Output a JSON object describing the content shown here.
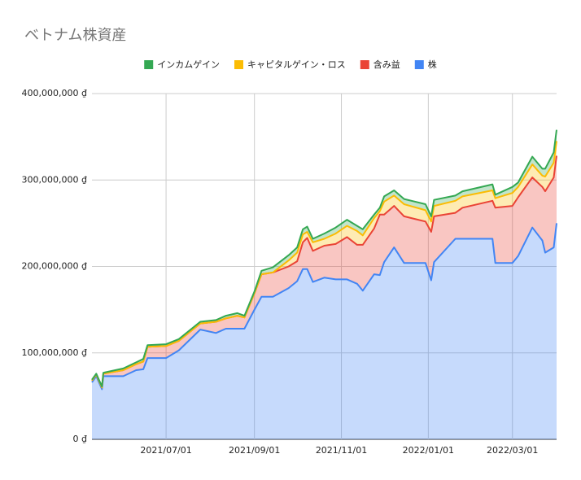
{
  "chart_data": {
    "type": "stacked_area",
    "title": "ベトナム株資産",
    "x": [
      "2021/05/10",
      "2021/05/13",
      "2021/05/17",
      "2021/05/18",
      "2021/06/01",
      "2021/06/10",
      "2021/06/15",
      "2021/06/18",
      "2021/07/01",
      "2021/07/10",
      "2021/07/25",
      "2021/08/05",
      "2021/08/12",
      "2021/08/20",
      "2021/08/25",
      "2021/09/01",
      "2021/09/06",
      "2021/09/14",
      "2021/09/25",
      "2021/10/01",
      "2021/10/05",
      "2021/10/08",
      "2021/10/12",
      "2021/10/20",
      "2021/10/28",
      "2021/11/05",
      "2021/11/12",
      "2021/11/16",
      "2021/11/24",
      "2021/11/28",
      "2021/12/01",
      "2021/12/08",
      "2021/12/15",
      "2021/12/30",
      "2022/01/03",
      "2022/01/05",
      "2022/01/20",
      "2022/01/25",
      "2022/02/15",
      "2022/02/17",
      "2022/03/01",
      "2022/03/05",
      "2022/03/15",
      "2022/03/22",
      "2022/03/24",
      "2022/03/30",
      "2022/04/01"
    ],
    "series": [
      {
        "name": "インカムゲイン",
        "color": "#34a853",
        "values": [
          1000000,
          1000000,
          1000000,
          1000000,
          2000000,
          2000000,
          3000000,
          2000000,
          2000000,
          2000000,
          2000000,
          2000000,
          3000000,
          3000000,
          2000000,
          2000000,
          4000000,
          6000000,
          6000000,
          6000000,
          6000000,
          6000000,
          4000000,
          6000000,
          7000000,
          7000000,
          6000000,
          7000000,
          4000000,
          4000000,
          6000000,
          6000000,
          6000000,
          7000000,
          6000000,
          7000000,
          6000000,
          6000000,
          7000000,
          4000000,
          7000000,
          5000000,
          9000000,
          8000000,
          9000000,
          12000000,
          13000000
        ]
      },
      {
        "name": "キャピタルゲイン・ロス",
        "color": "#fbbc04",
        "values": [
          0,
          0,
          0,
          0,
          0,
          0,
          0,
          0,
          0,
          0,
          0,
          0,
          0,
          0,
          0,
          0,
          0,
          0,
          7000000,
          10000000,
          9000000,
          7000000,
          10000000,
          8000000,
          12000000,
          13000000,
          16000000,
          11000000,
          12000000,
          4000000,
          15000000,
          12000000,
          14000000,
          13000000,
          12000000,
          12000000,
          14000000,
          13000000,
          12000000,
          11000000,
          15000000,
          12000000,
          15000000,
          13000000,
          17000000,
          17000000,
          17000000
        ]
      },
      {
        "name": "含み益",
        "color": "#ea4335",
        "values": [
          2000000,
          2000000,
          2000000,
          3000000,
          7000000,
          7000000,
          9000000,
          13000000,
          14000000,
          11000000,
          7000000,
          13000000,
          12000000,
          15000000,
          13000000,
          19000000,
          26000000,
          28000000,
          25000000,
          23000000,
          31000000,
          36000000,
          36000000,
          37000000,
          41000000,
          49000000,
          45000000,
          53000000,
          53000000,
          70000000,
          55000000,
          48000000,
          54000000,
          48000000,
          56000000,
          53000000,
          30000000,
          36000000,
          44000000,
          64000000,
          66000000,
          68000000,
          58000000,
          62000000,
          71000000,
          81000000,
          78000000
        ]
      },
      {
        "name": "株",
        "color": "#4285f4",
        "values": [
          66000000,
          73000000,
          58000000,
          73000000,
          73000000,
          80000000,
          81000000,
          94000000,
          94000000,
          103000000,
          127000000,
          123000000,
          128000000,
          128000000,
          128000000,
          150000000,
          165000000,
          165000000,
          175000000,
          183000000,
          197000000,
          197000000,
          182000000,
          187000000,
          185000000,
          185000000,
          180000000,
          172000000,
          191000000,
          190000000,
          205000000,
          222000000,
          204000000,
          204000000,
          184000000,
          205000000,
          232000000,
          232000000,
          232000000,
          204000000,
          204000000,
          212000000,
          245000000,
          230000000,
          216000000,
          222000000,
          250000000
        ]
      }
    ],
    "xlim": [
      "2021/05/10",
      "2022/04/01"
    ],
    "xticks": [
      "2021/07/01",
      "2021/09/01",
      "2021/11/01",
      "2022/01/01",
      "2022/03/01"
    ],
    "ylim": [
      0,
      400000000
    ],
    "yticks": [
      {
        "value": 0,
        "label": "0 ₫"
      },
      {
        "value": 100000000,
        "label": "100,000,000 ₫"
      },
      {
        "value": 200000000,
        "label": "200,000,000 ₫"
      },
      {
        "value": 300000000,
        "label": "300,000,000 ₫"
      },
      {
        "value": 400000000,
        "label": "400,000,000 ₫"
      }
    ],
    "grid": true,
    "legend": "top"
  }
}
